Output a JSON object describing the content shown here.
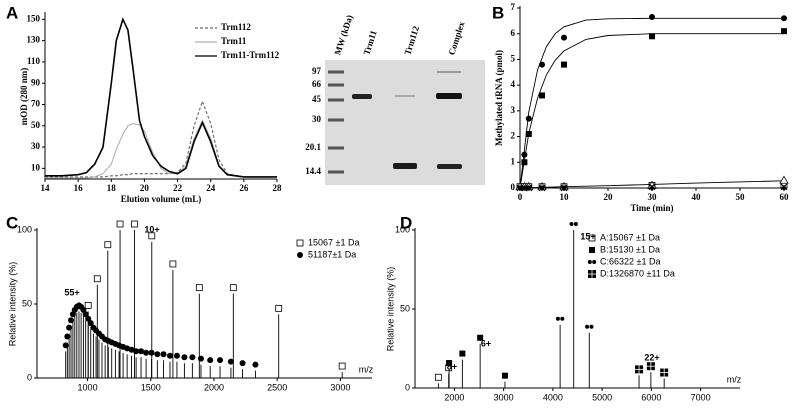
{
  "chart_data": [
    {
      "type": "line",
      "label": "A",
      "xlabel": "Elution volume (mL)",
      "ylabel": "mOD (280 nm)",
      "x": [
        14,
        15,
        16,
        16.5,
        17,
        17.5,
        18,
        18.3,
        18.7,
        19,
        19.3,
        19.7,
        20,
        20.5,
        21,
        21.5,
        22,
        22.5,
        23,
        23.5,
        24,
        24.5,
        25,
        26,
        27,
        28
      ],
      "xlim": [
        14,
        28
      ],
      "xticks": [
        14,
        16,
        18,
        20,
        22,
        24,
        26,
        28
      ],
      "ylim": [
        0,
        155
      ],
      "yticks": [
        10,
        30,
        50,
        70,
        90,
        110,
        130,
        150
      ],
      "legend": "upper right",
      "series": [
        {
          "name": "Trm112",
          "color": "#666666",
          "style": "dashed",
          "values": [
            2,
            2,
            2,
            2,
            2,
            2,
            3,
            3,
            4,
            4,
            5,
            5,
            5,
            5,
            5,
            5,
            6,
            15,
            50,
            73,
            52,
            18,
            5,
            2,
            2,
            2
          ]
        },
        {
          "name": "Trm11",
          "color": "#b0b0b0",
          "style": "solid",
          "values": [
            1,
            1,
            1,
            1,
            2,
            5,
            14,
            28,
            42,
            50,
            52,
            51,
            45,
            25,
            10,
            5,
            5,
            12,
            38,
            55,
            38,
            13,
            4,
            2,
            2,
            2
          ]
        },
        {
          "name": "Trm11-Trm112",
          "color": "#000000",
          "style": "solid",
          "values": [
            3,
            3,
            4,
            6,
            14,
            30,
            90,
            130,
            150,
            140,
            105,
            55,
            40,
            22,
            12,
            7,
            5,
            10,
            35,
            53,
            35,
            12,
            4,
            2,
            2,
            2
          ]
        }
      ]
    },
    {
      "type": "gel",
      "lanes": [
        "MW (kDa)",
        "Trm11",
        "Trm112",
        "Complex"
      ],
      "markers": [
        97,
        66,
        45,
        30,
        20.1,
        14.4
      ]
    },
    {
      "type": "scatter",
      "label": "B",
      "xlabel": "Time (min)",
      "ylabel": "Methylated tRNA (pmol)",
      "xlim": [
        0,
        60
      ],
      "xticks": [
        0,
        10,
        20,
        30,
        40,
        50,
        60
      ],
      "ylim": [
        0,
        7
      ],
      "yticks": [
        0,
        1,
        2,
        3,
        4,
        5,
        6,
        7
      ],
      "series": [
        {
          "line": true,
          "color": "#000000",
          "x": [
            0,
            2,
            4,
            6,
            8,
            10,
            15,
            20,
            30,
            40,
            60
          ],
          "values": [
            0,
            2.96,
            4.6,
            5.5,
            6.0,
            6.27,
            6.53,
            6.58,
            6.6,
            6.6,
            6.6
          ]
        },
        {
          "line": true,
          "color": "#000000",
          "x": [
            0,
            2,
            4,
            6,
            8,
            10,
            15,
            20,
            30,
            40,
            60
          ],
          "values": [
            0,
            2.13,
            3.5,
            4.4,
            4.97,
            5.33,
            5.78,
            5.93,
            6.0,
            6.0,
            6.0
          ]
        },
        {
          "line": true,
          "color": "#000000",
          "x": [
            0,
            2,
            4,
            6,
            8,
            10,
            15,
            20,
            30,
            40,
            60
          ],
          "values": [
            0,
            0.01,
            0.02,
            0.03,
            0.04,
            0.05,
            0.07,
            0.09,
            0.14,
            0.19,
            0.28
          ]
        },
        {
          "marker": "circle",
          "color": "#000000",
          "x": [
            0,
            1,
            2,
            5,
            10,
            30,
            60
          ],
          "values": [
            0.05,
            1.3,
            2.7,
            4.8,
            5.85,
            6.65,
            6.6
          ]
        },
        {
          "marker": "square",
          "color": "#000000",
          "x": [
            0,
            1,
            2,
            5,
            10,
            30,
            60
          ],
          "values": [
            0.05,
            1.0,
            2.1,
            3.6,
            4.8,
            5.9,
            6.1
          ]
        },
        {
          "marker": "open-square",
          "color": "#000000",
          "x": [
            0,
            1,
            2,
            5,
            10,
            30,
            60
          ],
          "values": [
            0.05,
            0.05,
            0.05,
            0.05,
            0.05,
            0.1,
            0.1
          ]
        },
        {
          "marker": "open-triangle",
          "color": "#000000",
          "x": [
            0,
            1,
            2,
            5,
            10,
            30,
            60
          ],
          "values": [
            0.05,
            0.05,
            0.05,
            0.05,
            0.05,
            0.1,
            0.3
          ]
        },
        {
          "marker": "cross",
          "color": "#000000",
          "x": [
            0,
            1,
            2,
            5,
            10,
            30,
            60
          ],
          "values": [
            0,
            0,
            0,
            0,
            0,
            0.05,
            0.05
          ]
        },
        {
          "marker": "diamond",
          "color": "#000000",
          "x": [
            0,
            1,
            2,
            5,
            10,
            30,
            60
          ],
          "values": [
            0,
            0,
            0,
            0,
            0,
            0,
            0
          ]
        }
      ]
    },
    {
      "type": "spectrum",
      "label": "C",
      "xlabel": "m/z",
      "ylabel": "Relative intensity (%)",
      "xlim": [
        600,
        3250
      ],
      "xticks": [
        1000,
        1500,
        2000,
        2500,
        3000
      ],
      "ylim": [
        0,
        100
      ],
      "yticks": [
        0,
        50,
        100
      ],
      "series": [
        {
          "name": "15067 ±1 Da",
          "marker": "open-square",
          "x": [
            1005,
            1077,
            1160,
            1257,
            1371,
            1508,
            1675,
            1884,
            2153,
            2512,
            3014
          ],
          "values": [
            45,
            63,
            86,
            100,
            100,
            92,
            73,
            57,
            57,
            43,
            4
          ]
        },
        {
          "name": "51187±1 Da",
          "marker": "circle",
          "x": [
            827,
            840,
            854,
            869,
            884,
            899,
            915,
            932,
            949,
            967,
            985,
            1005,
            1025,
            1046,
            1067,
            1090,
            1114,
            1139,
            1164,
            1191,
            1220,
            1249,
            1281,
            1313,
            1348,
            1384,
            1423,
            1463,
            1506,
            1552,
            1601,
            1652,
            1707,
            1766,
            1829,
            1897,
            1970,
            2048,
            2134,
            2226,
            2328
          ],
          "values": [
            18,
            24,
            30,
            35,
            39,
            42,
            44,
            45,
            44,
            42,
            39,
            36,
            33,
            30,
            28,
            26,
            24,
            22,
            21,
            20,
            19,
            18,
            17,
            16,
            15,
            14,
            14,
            13,
            13,
            12,
            12,
            11,
            11,
            10,
            10,
            9,
            8,
            8,
            7,
            6,
            5
          ]
        }
      ],
      "annotations": [
        "10+",
        "55+"
      ]
    },
    {
      "type": "spectrum",
      "label": "D",
      "xlabel": "m/z",
      "ylabel": "Relative intensity (%)",
      "xlim": [
        1200,
        7800
      ],
      "xticks": [
        2000,
        3000,
        4000,
        5000,
        6000,
        7000
      ],
      "ylim": [
        0,
        100
      ],
      "yticks": [
        0,
        50,
        100
      ],
      "series": [
        {
          "name": "A:15067 ±1 Da",
          "marker": "open-square",
          "x": [
            1675,
            1884
          ],
          "values": [
            3,
            9
          ]
        },
        {
          "name": "B:15130 ±1 Da",
          "marker": "square",
          "x": [
            1892,
            2162,
            2523,
            3027
          ],
          "values": [
            12,
            18,
            28,
            4
          ]
        },
        {
          "name": "C:66322 ±1 Da",
          "marker": "double-circle",
          "x": [
            4147,
            4423,
            4739
          ],
          "values": [
            40,
            100,
            35
          ]
        },
        {
          "name": "D:1326870 ±11 Da",
          "marker": "quad-square",
          "x": [
            5750,
            5990,
            6260
          ],
          "values": [
            8,
            10,
            6
          ]
        }
      ],
      "annotations": [
        "8+",
        "6+",
        "15+",
        "22+"
      ]
    }
  ]
}
